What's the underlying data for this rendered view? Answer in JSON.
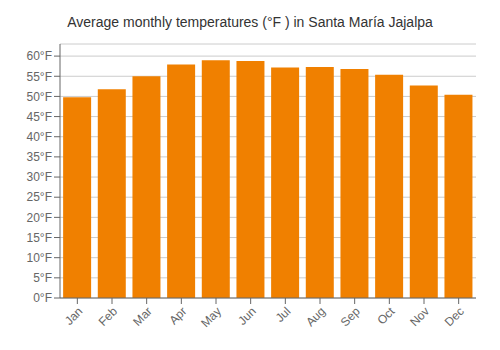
{
  "chart_data": {
    "type": "bar",
    "title": "Average monthly temperatures (°F ) in Santa María Jajalpa",
    "categories": [
      "Jan",
      "Feb",
      "Mar",
      "Apr",
      "May",
      "Jun",
      "Jul",
      "Aug",
      "Sep",
      "Oct",
      "Nov",
      "Dec"
    ],
    "values": [
      49.8,
      51.8,
      55.0,
      57.9,
      59.0,
      58.8,
      57.2,
      57.3,
      56.8,
      55.4,
      52.7,
      50.4
    ],
    "color": "#F08000",
    "ylim": [
      0,
      63
    ],
    "yticks": [
      {
        "value": 0,
        "label": "0°F"
      },
      {
        "value": 5,
        "label": "5°F"
      },
      {
        "value": 10,
        "label": "10°F"
      },
      {
        "value": 15,
        "label": "15°F"
      },
      {
        "value": 20,
        "label": "20°F"
      },
      {
        "value": 25,
        "label": "25°F"
      },
      {
        "value": 30,
        "label": "30°F"
      },
      {
        "value": 35,
        "label": "35°F"
      },
      {
        "value": 40,
        "label": "40°F"
      },
      {
        "value": 45,
        "label": "45°F"
      },
      {
        "value": 50,
        "label": "50°F"
      },
      {
        "value": 55,
        "label": "55°F"
      },
      {
        "value": 60,
        "label": "60°F"
      }
    ],
    "grid": true
  }
}
